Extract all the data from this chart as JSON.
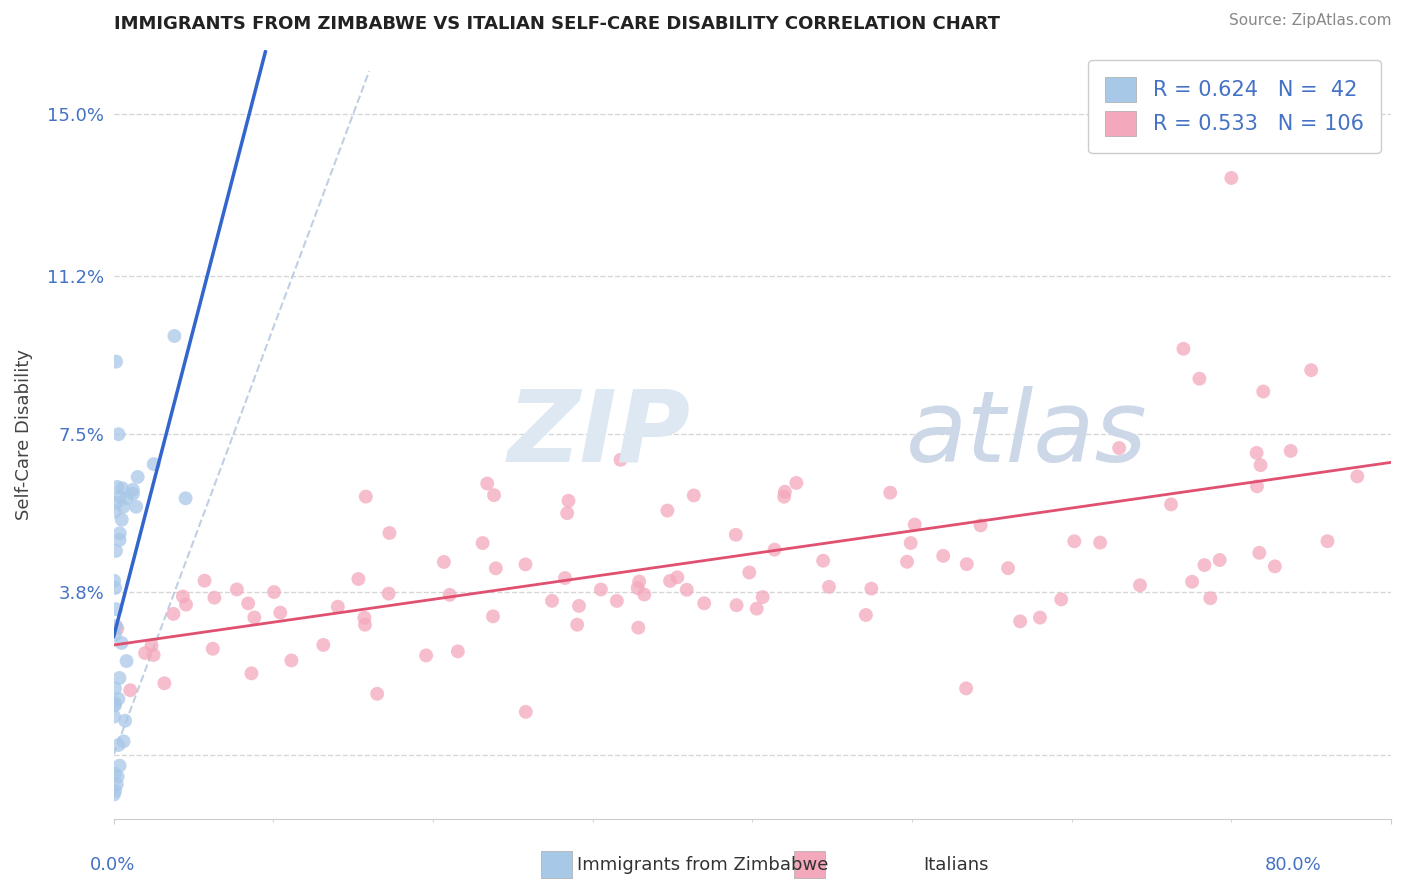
{
  "title": "IMMIGRANTS FROM ZIMBABWE VS ITALIAN SELF-CARE DISABILITY CORRELATION CHART",
  "source": "Source: ZipAtlas.com",
  "ylabel": "Self-Care Disability",
  "yticks": [
    0.0,
    3.8,
    7.5,
    11.2,
    15.0
  ],
  "ytick_labels": [
    "",
    "3.8%",
    "7.5%",
    "11.2%",
    "15.0%"
  ],
  "xlim": [
    0.0,
    80.0
  ],
  "ylim": [
    -1.5,
    16.5
  ],
  "legend_R1": "0.624",
  "legend_N1": "42",
  "legend_R2": "0.533",
  "legend_N2": "106",
  "blue_scatter_color": "#a8c8e8",
  "pink_scatter_color": "#f4a8bc",
  "trend_blue_color": "#3366cc",
  "trend_pink_color": "#e05070",
  "diag_color": "#b0c4de",
  "legend_label1": "Immigrants from Zimbabwe",
  "legend_label2": "Italians",
  "grid_color": "#cccccc",
  "axis_color": "#4472c4",
  "title_color": "#222222",
  "source_color": "#888888"
}
